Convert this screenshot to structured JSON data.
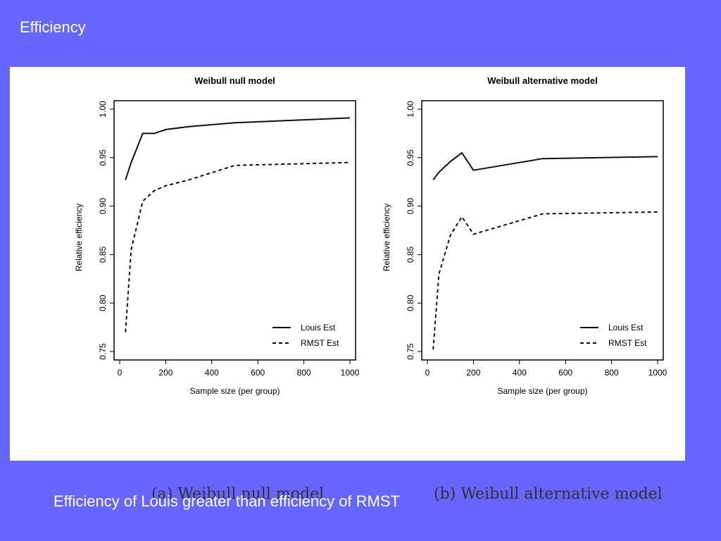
{
  "slide": {
    "title": "Efficiency",
    "footer": "Efficiency of Louis greater than  efficiency of RMST"
  },
  "captions": [
    "(a) Weibull null model",
    "(b) Weibull alternative model"
  ],
  "chart_data": [
    {
      "type": "line",
      "title": "Weibull null model",
      "xlabel": "Sample size (per group)",
      "ylabel": "Relative efficiency",
      "xlim": [
        0,
        1000
      ],
      "ylim": [
        0.75,
        1.0
      ],
      "xticks": [
        0,
        200,
        400,
        600,
        800,
        1000
      ],
      "yticks": [
        0.75,
        0.8,
        0.85,
        0.9,
        0.95,
        1.0
      ],
      "ytick_labels": [
        "0.75",
        "0.80",
        "0.85",
        "0.90",
        "0.95",
        "1.00"
      ],
      "legend_position": "bottom-right",
      "series": [
        {
          "name": "Louis Est",
          "style": "solid",
          "x": [
            25,
            50,
            100,
            150,
            200,
            300,
            500,
            1000
          ],
          "y": [
            0.927,
            0.945,
            0.975,
            0.975,
            0.979,
            0.982,
            0.986,
            0.991
          ]
        },
        {
          "name": "RMST Est",
          "style": "dashed",
          "x": [
            25,
            50,
            100,
            150,
            200,
            300,
            500,
            1000
          ],
          "y": [
            0.77,
            0.855,
            0.905,
            0.916,
            0.921,
            0.927,
            0.942,
            0.945
          ]
        }
      ]
    },
    {
      "type": "line",
      "title": "Weibull alternative model",
      "xlabel": "Sample size (per group)",
      "ylabel": "Relative efficiency",
      "xlim": [
        0,
        1000
      ],
      "ylim": [
        0.75,
        1.0
      ],
      "xticks": [
        0,
        200,
        400,
        600,
        800,
        1000
      ],
      "yticks": [
        0.75,
        0.8,
        0.85,
        0.9,
        0.95,
        1.0
      ],
      "ytick_labels": [
        "0.75",
        "0.80",
        "0.85",
        "0.90",
        "0.95",
        "1.00"
      ],
      "legend_position": "bottom-right",
      "series": [
        {
          "name": "Louis Est",
          "style": "solid",
          "x": [
            25,
            50,
            100,
            150,
            200,
            300,
            500,
            1000
          ],
          "y": [
            0.927,
            0.935,
            0.946,
            0.955,
            0.937,
            0.941,
            0.949,
            0.951
          ]
        },
        {
          "name": "RMST Est",
          "style": "dashed",
          "x": [
            25,
            50,
            100,
            150,
            200,
            300,
            500,
            1000
          ],
          "y": [
            0.752,
            0.83,
            0.87,
            0.889,
            0.871,
            0.878,
            0.892,
            0.894
          ]
        }
      ]
    }
  ]
}
